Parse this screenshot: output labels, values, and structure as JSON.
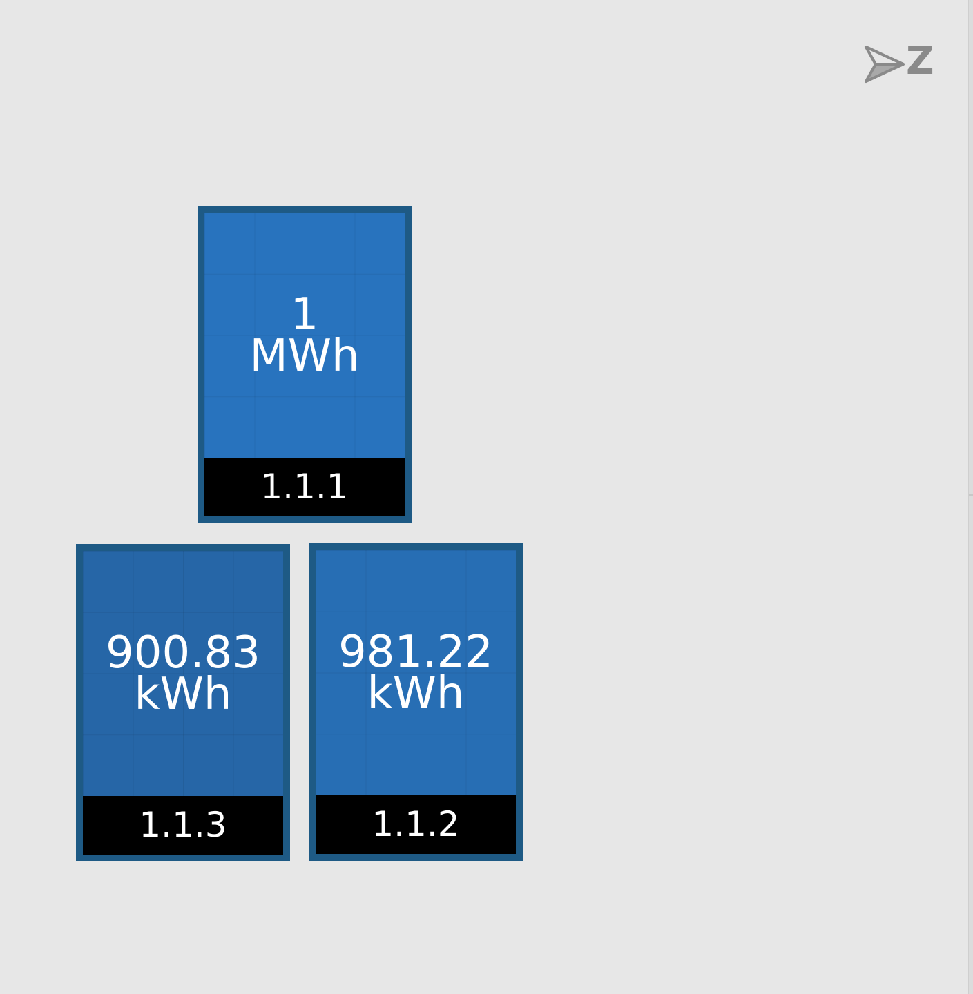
{
  "compass": {
    "icon": "north-arrow-icon",
    "letter": "Z",
    "color": "#8a8a8a"
  },
  "panels": [
    {
      "id": "1.1.1",
      "value": "1",
      "unit": "MWh"
    },
    {
      "id": "1.1.3",
      "value": "900.83",
      "unit": "kWh"
    },
    {
      "id": "1.1.2",
      "value": "981.22",
      "unit": "kWh"
    }
  ],
  "colors": {
    "background": "#e7e7e7",
    "panel_fill": "#2873be",
    "panel_fill_dim": "#2666a7",
    "panel_border": "#1e5a85",
    "label_bg": "#000000",
    "text": "#ffffff"
  }
}
